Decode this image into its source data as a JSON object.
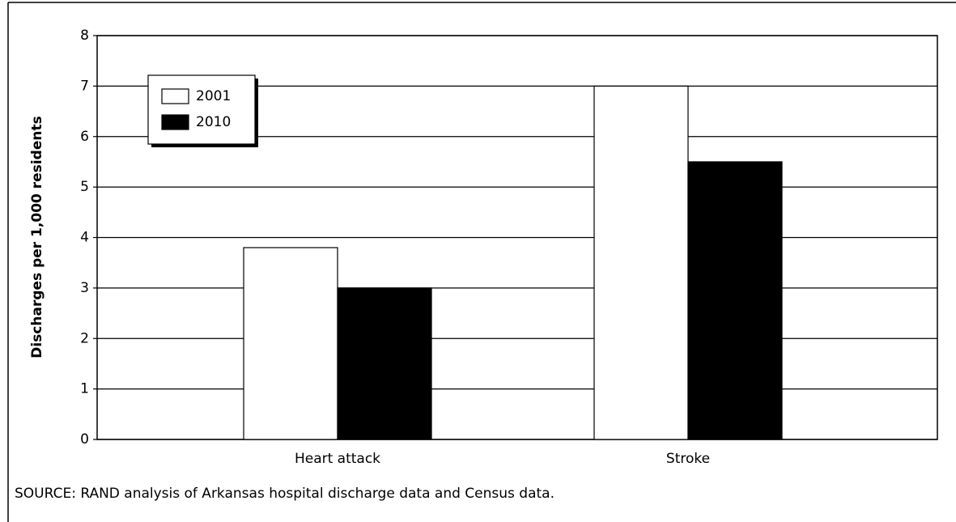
{
  "chart_data": {
    "type": "bar",
    "categories": [
      "Heart attack",
      "Stroke"
    ],
    "series": [
      {
        "name": "2001",
        "color": "#ffffff",
        "values": [
          3.8,
          7.0
        ]
      },
      {
        "name": "2010",
        "color": "#000000",
        "values": [
          3.0,
          5.5
        ]
      }
    ],
    "ylabel": "Discharges per 1,000 residents",
    "ylim": [
      0,
      8
    ],
    "yticks": [
      0,
      1,
      2,
      3,
      4,
      5,
      6,
      7,
      8
    ],
    "grid": true,
    "legend": "upper left",
    "source": "SOURCE: RAND analysis of Arkansas hospital discharge data and Census data."
  }
}
